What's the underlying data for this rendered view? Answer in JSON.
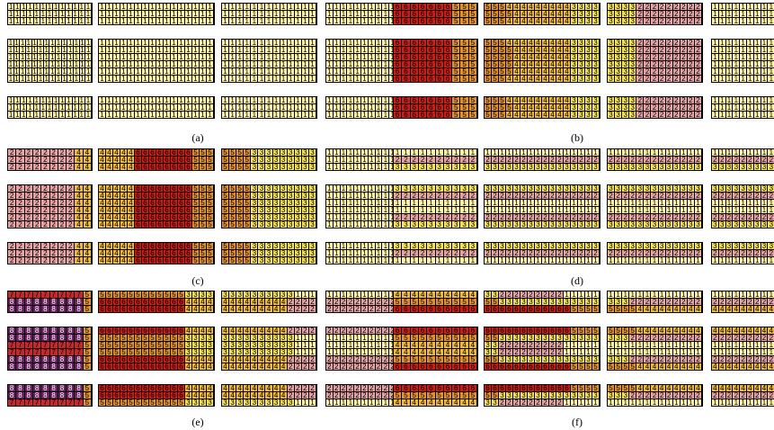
{
  "colors": {
    "1": "#fff3a6",
    "2": "#e7a3a4",
    "3": "#f6e35a",
    "4": "#eeb93c",
    "5": "#e3912f",
    "6": "#cc1c14",
    "7": "#c8282a",
    "8": "#67205d"
  },
  "panels": [
    {
      "caption": "(a)",
      "blocks": [
        {
          "rows": [
            "1111111111111",
            "1111111111111",
            "1111111111111"
          ]
        },
        {
          "rows": [
            "1111111111111111",
            "1111111111111111",
            "1111111111111111"
          ]
        },
        {
          "rows": [
            "1111111111111",
            "1111111111111",
            "1111111111111"
          ]
        },
        {
          "rows": [
            "1111111111",
            "1111111111",
            "1111111111"
          ]
        },
        {
          "rows": [
            "11111111111111",
            "11111111111111",
            "11111111111111",
            "11111111111111",
            "11111111111111",
            "11111111111111"
          ]
        },
        {
          "rows": [
            "1111111111111111",
            "1111111111111111",
            "1111111111111111",
            "1111111111111111",
            "1111111111111111",
            "1111111111111111"
          ]
        },
        {
          "rows": [
            "1111111111111",
            "1111111111111",
            "1111111111111",
            "1111111111111",
            "1111111111111",
            "1111111111111"
          ]
        },
        {
          "rows": [
            "1111111111",
            "1111111111",
            "1111111111",
            "1111111111",
            "1111111111",
            "1111111111"
          ]
        },
        {
          "rows": [
            "1111111111111",
            "1111111111111",
            "1111111111111"
          ]
        },
        {
          "rows": [
            "1111111111111111",
            "1111111111111111",
            "1111111111111111"
          ]
        },
        {
          "rows": [
            "1111111111111",
            "1111111111111",
            "1111111111111"
          ]
        },
        {
          "rows": [
            "1111111111",
            "1111111111",
            "1111111111"
          ]
        }
      ]
    },
    {
      "caption": "(b)",
      "blocks": [
        {
          "rows": [
            "6666666555",
            "6666666555",
            "6666666555"
          ]
        },
        {
          "rows": [
            "5554444444443333",
            "5555444444443333",
            "5554444444443333"
          ]
        },
        {
          "rows": [
            "3333222222222",
            "3333222222222",
            "3333222222222"
          ]
        },
        {
          "rows": [
            "1111111111",
            "1111111111",
            "1111111111"
          ]
        },
        {
          "rows": [
            "6666666555",
            "6666666555",
            "6666666555",
            "6666666555",
            "6666666555",
            "6666666555"
          ]
        },
        {
          "rows": [
            "5554444444443333",
            "5555444444443333",
            "5555444444443333",
            "5555444444443333",
            "5555444444443333",
            "5554444444443333"
          ]
        },
        {
          "rows": [
            "3333222222222",
            "3333222222222",
            "3333222222222",
            "3333222222222",
            "3333222222222",
            "3333222222222"
          ]
        },
        {
          "rows": [
            "1111111111",
            "1111111111",
            "1111111111",
            "1111111111",
            "1111111111",
            "1111111111"
          ]
        },
        {
          "rows": [
            "6666666555",
            "6666666555",
            "6666666555"
          ]
        },
        {
          "rows": [
            "5554444444443333",
            "5555444444443333",
            "5554444444443333"
          ]
        },
        {
          "rows": [
            "3333222222222",
            "3333222222222",
            "3333222222222"
          ]
        },
        {
          "rows": [
            "1111111111",
            "1111111111",
            "1111111111"
          ]
        }
      ]
    },
    {
      "caption": "(c)",
      "blocks": [
        {
          "rows": [
            "2222222244",
            "2222222244",
            "2222222244"
          ]
        },
        {
          "rows": [
            "4444466666666555",
            "4444466666666555",
            "4444466666666555"
          ]
        },
        {
          "rows": [
            "5555333333333",
            "5555333333333",
            "5555333333333"
          ]
        },
        {
          "rows": [
            "1111111111",
            "1111111111",
            "1111111111"
          ]
        },
        {
          "rows": [
            "2222222244",
            "2222222244",
            "2222222244",
            "2222222244",
            "2222222244",
            "2222222244"
          ]
        },
        {
          "rows": [
            "4444466666666555",
            "4444466666666555",
            "4444466666666555",
            "4444466666666555",
            "4444466666666555",
            "4444466666666555"
          ]
        },
        {
          "rows": [
            "5555333333333",
            "5555333333333",
            "5555333333333",
            "5555333333333",
            "5555333333333",
            "5555333333333"
          ]
        },
        {
          "rows": [
            "1111111111",
            "1111111111",
            "1111111111",
            "1111111111",
            "1111111111",
            "1111111111"
          ]
        },
        {
          "rows": [
            "2222222244",
            "2222222244",
            "2222222244"
          ]
        },
        {
          "rows": [
            "4444466666666555",
            "4444466666666555",
            "4444466666666555"
          ]
        },
        {
          "rows": [
            "5555333333333",
            "5555333333333",
            "5555333333333"
          ]
        },
        {
          "rows": [
            "1111111111",
            "1111111111",
            "1111111111"
          ]
        }
      ]
    },
    {
      "caption": "(d)",
      "blocks": [
        {
          "rows": [
            "1111111111",
            "2222222222",
            "3333333333"
          ]
        },
        {
          "rows": [
            "1111111111111111",
            "2222222222222222",
            "3333333333333333"
          ]
        },
        {
          "rows": [
            "1111111111111",
            "2222222222222",
            "3333333333333"
          ]
        },
        {
          "rows": [
            "1111111111",
            "2222222222",
            "3333333333"
          ]
        },
        {
          "rows": [
            "3333333333",
            "2222222222",
            "1111111111",
            "1111111111",
            "2222222222",
            "3333333333"
          ]
        },
        {
          "rows": [
            "3333333333333333",
            "2222222222222222",
            "1111111111111111",
            "1111111111111111",
            "2222222222222222",
            "3333333333333333"
          ]
        },
        {
          "rows": [
            "3333333333333",
            "2222222222222",
            "1111111111111",
            "1111111111111",
            "2222222222222",
            "3333333333333"
          ]
        },
        {
          "rows": [
            "3333333333",
            "2222222222",
            "1111111111",
            "1111111111",
            "2222222222",
            "3333333333"
          ]
        },
        {
          "rows": [
            "3333333333",
            "2222222222",
            "1111111111"
          ]
        },
        {
          "rows": [
            "3333333333333333",
            "2222222222222222",
            "1111111111111111"
          ]
        },
        {
          "rows": [
            "3333333333333",
            "2222222222222",
            "1111111111111"
          ]
        },
        {
          "rows": [
            "3333333333",
            "2222222222",
            "1111111111"
          ]
        }
      ]
    },
    {
      "caption": "(e)",
      "blocks": [
        {
          "rows": [
            "7777777775",
            "8888888885",
            "8888888885"
          ]
        },
        {
          "rows": [
            "5555555555553333",
            "6666666666664444",
            "6666666666664444"
          ]
        },
        {
          "rows": [
            "3333333333111",
            "4444444442222",
            "4444444442222"
          ]
        },
        {
          "rows": [
            "1111111111",
            "2222222222",
            "2222222222"
          ]
        },
        {
          "rows": [
            "8888888885",
            "8888888885",
            "7777777775",
            "7777777775",
            "8888888885",
            "8888888885"
          ]
        },
        {
          "rows": [
            "6666666666664444",
            "5555555555553333",
            "5555555555553333",
            "5555555555553333",
            "6666666666664444",
            "6666666666664444"
          ]
        },
        {
          "rows": [
            "4444444442222",
            "3333333333111",
            "3333333333111",
            "3333333333111",
            "4444444442222",
            "4444444442222"
          ]
        },
        {
          "rows": [
            "2222222222",
            "1111111111",
            "1111111111",
            "1111111111",
            "2222222222",
            "2222222222"
          ]
        },
        {
          "rows": [
            "8888888885",
            "8888888885",
            "7777777775"
          ]
        },
        {
          "rows": [
            "6666666666664444",
            "6666666666664444",
            "5555555555553333"
          ]
        },
        {
          "rows": [
            "4444444442222",
            "4444444442222",
            "3333333333111"
          ]
        },
        {
          "rows": [
            "2222222222",
            "2222222222",
            "1111111111"
          ]
        }
      ]
    },
    {
      "caption": "(f)",
      "blocks": [
        {
          "rows": [
            "4444444444",
            "5555555555",
            "6666666666"
          ]
        },
        {
          "rows": [
            "3322222222211111",
            "5533333333333333",
            "6666666666665555"
          ]
        },
        {
          "rows": [
            "1111111111111",
            "3332222222222",
            "5555444444444"
          ]
        },
        {
          "rows": [
            "1111111111",
            "2222222222",
            "4444444444"
          ]
        },
        {
          "rows": [
            "6666666666",
            "5555555555",
            "4444444444",
            "4444444444",
            "5555555555",
            "6666666666"
          ]
        },
        {
          "rows": [
            "6666666666665555",
            "5533333333333333",
            "3322222222211111",
            "3322222222211111",
            "5533333333333333",
            "6666666666665555"
          ]
        },
        {
          "rows": [
            "5555444444444",
            "3332222222222",
            "1111111111111",
            "1111111111111",
            "3332222222222",
            "5555444444444"
          ]
        },
        {
          "rows": [
            "4444444444",
            "2222222222",
            "1111111111",
            "1111111111",
            "2222222222",
            "4444444444"
          ]
        },
        {
          "rows": [
            "6666666666",
            "5555555555",
            "4444444444"
          ]
        },
        {
          "rows": [
            "6666666666665555",
            "5533333333333333",
            "3322222222211111"
          ]
        },
        {
          "rows": [
            "5555444444444",
            "3332222222222",
            "1111111111111"
          ]
        },
        {
          "rows": [
            "4444444444",
            "2222222222",
            "1111111111"
          ]
        }
      ]
    }
  ]
}
